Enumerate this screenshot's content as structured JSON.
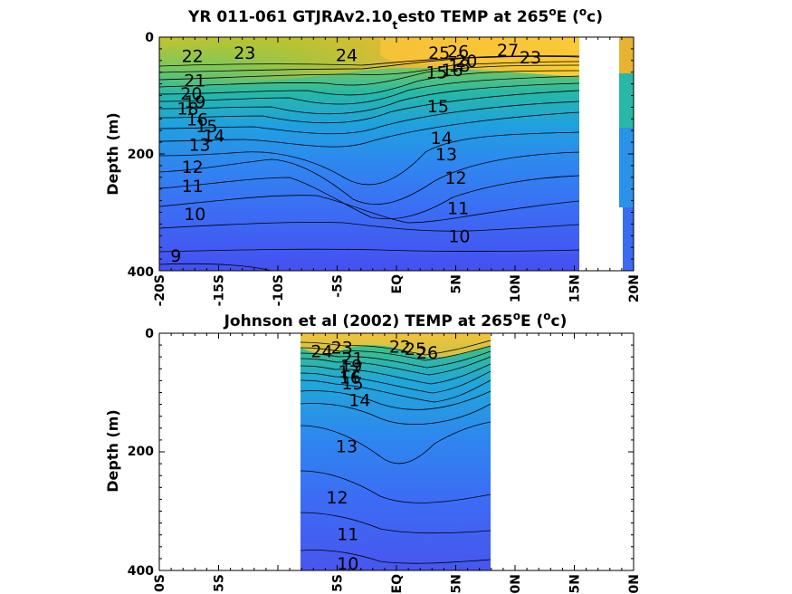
{
  "chart_data": [
    {
      "type": "heatmap",
      "title_parts": [
        "YR 011-061 GTJRAv2.10",
        "t",
        "est0 TEMP at 265",
        "o",
        "E (",
        "o",
        "c)"
      ],
      "ylabel": "Depth (m)",
      "xticks": [
        "-20S",
        "-15S",
        "-10S",
        "-5S",
        "EQ",
        "5N",
        "10N",
        "15N",
        "20N"
      ],
      "yticks": [
        "0",
        "200",
        "400"
      ],
      "xlim": [
        -20,
        20
      ],
      "ylim": [
        400,
        0
      ],
      "data_extent": {
        "lat": [
          -20,
          15.5
        ],
        "lat_strip": [
          19,
          20
        ],
        "depth_strip_max": 290
      },
      "color_range": [
        8,
        28
      ],
      "contour_levels": [
        9,
        10,
        11,
        12,
        13,
        14,
        15,
        16,
        17,
        18,
        19,
        20,
        21,
        22,
        23,
        24,
        25,
        26,
        27
      ],
      "contour_labels": [
        {
          "text": "22",
          "lat": -17.2,
          "depth": 32
        },
        {
          "text": "23",
          "lat": -12.8,
          "depth": 26
        },
        {
          "text": "24",
          "lat": -4.2,
          "depth": 30
        },
        {
          "text": "25",
          "lat": 3.6,
          "depth": 26
        },
        {
          "text": "26",
          "lat": 5.2,
          "depth": 24
        },
        {
          "text": "27",
          "lat": 9.4,
          "depth": 22
        },
        {
          "text": "23",
          "lat": 11.3,
          "depth": 34
        },
        {
          "text": "20",
          "lat": 5.9,
          "depth": 40
        },
        {
          "text": "18",
          "lat": 5.3,
          "depth": 48
        },
        {
          "text": "16",
          "lat": 4.7,
          "depth": 56
        },
        {
          "text": "15",
          "lat": 3.4,
          "depth": 60
        },
        {
          "text": "15",
          "lat": 3.5,
          "depth": 118
        },
        {
          "text": "21",
          "lat": -17.0,
          "depth": 74
        },
        {
          "text": "20",
          "lat": -17.3,
          "depth": 96
        },
        {
          "text": "19",
          "lat": -17.0,
          "depth": 110
        },
        {
          "text": "18",
          "lat": -17.6,
          "depth": 122
        },
        {
          "text": "16",
          "lat": -16.8,
          "depth": 140
        },
        {
          "text": "15",
          "lat": -16.0,
          "depth": 152
        },
        {
          "text": "14",
          "lat": -15.4,
          "depth": 168
        },
        {
          "text": "13",
          "lat": -16.6,
          "depth": 184
        },
        {
          "text": "14",
          "lat": 3.8,
          "depth": 172
        },
        {
          "text": "13",
          "lat": 4.2,
          "depth": 200
        },
        {
          "text": "12",
          "lat": -17.2,
          "depth": 222
        },
        {
          "text": "12",
          "lat": 5.0,
          "depth": 240
        },
        {
          "text": "11",
          "lat": -17.2,
          "depth": 254
        },
        {
          "text": "11",
          "lat": 5.2,
          "depth": 292
        },
        {
          "text": "10",
          "lat": -17.0,
          "depth": 302
        },
        {
          "text": "10",
          "lat": 5.3,
          "depth": 340
        },
        {
          "text": "9",
          "lat": -18.6,
          "depth": 374
        }
      ]
    },
    {
      "type": "heatmap",
      "title_parts": [
        "Johnson et al (2002) TEMP at 265",
        "o",
        "E (",
        "o",
        "c)"
      ],
      "ylabel": "Depth (m)",
      "xticks": [
        "0S",
        "5S",
        "5S",
        "EQ",
        "5N",
        "0N",
        "5N",
        "0N"
      ],
      "yticks": [
        "0",
        "200",
        "400"
      ],
      "xlim": [
        -20,
        20
      ],
      "ylim": [
        400,
        0
      ],
      "data_extent": {
        "lat": [
          -8,
          8
        ]
      },
      "color_range": [
        8,
        28
      ],
      "contour_levels": [
        10,
        11,
        12,
        13,
        14,
        15,
        16,
        17,
        18,
        19,
        20,
        21,
        22,
        23,
        24,
        25,
        26,
        27
      ],
      "contour_labels": [
        {
          "text": "24",
          "lat": -6.3,
          "depth": 30
        },
        {
          "text": "23",
          "lat": -4.6,
          "depth": 24
        },
        {
          "text": "22",
          "lat": 0.3,
          "depth": 22
        },
        {
          "text": "25",
          "lat": 1.6,
          "depth": 26
        },
        {
          "text": "26",
          "lat": 2.6,
          "depth": 32
        },
        {
          "text": "21",
          "lat": -3.7,
          "depth": 42
        },
        {
          "text": "19",
          "lat": -3.8,
          "depth": 54
        },
        {
          "text": "17",
          "lat": -4.0,
          "depth": 64
        },
        {
          "text": "16",
          "lat": -3.9,
          "depth": 74
        },
        {
          "text": "15",
          "lat": -3.7,
          "depth": 84
        },
        {
          "text": "14",
          "lat": -3.1,
          "depth": 112
        },
        {
          "text": "13",
          "lat": -4.2,
          "depth": 190
        },
        {
          "text": "12",
          "lat": -5.0,
          "depth": 276
        },
        {
          "text": "11",
          "lat": -4.1,
          "depth": 338
        },
        {
          "text": "10",
          "lat": -4.1,
          "depth": 388
        }
      ]
    }
  ]
}
